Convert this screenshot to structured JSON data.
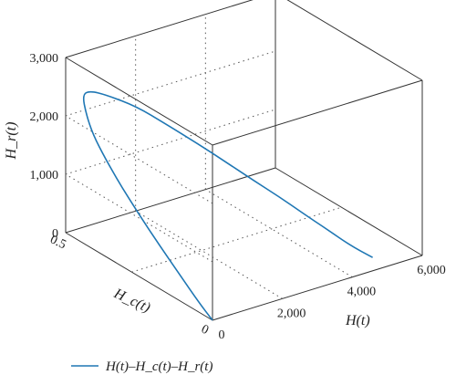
{
  "chart_data": {
    "type": "line3d",
    "title": "",
    "axes": {
      "x": {
        "label": "H(t)",
        "range": [
          0,
          6000
        ],
        "ticks": [
          "0",
          "2,000",
          "4,000",
          "6,000"
        ]
      },
      "y": {
        "label": "H_c(t)",
        "range": [
          0,
          0.5
        ],
        "ticks": [
          "0",
          "0.5"
        ]
      },
      "z": {
        "label": "H_r(t)",
        "range": [
          0,
          3000
        ],
        "ticks": [
          "0",
          "1,000",
          "2,000",
          "3,000"
        ]
      }
    },
    "grid": true,
    "legend": {
      "position": "bottom-left",
      "entries": [
        "H(t)–H_c(t)–H_r(t)"
      ]
    },
    "series": [
      {
        "name": "H(t)–H_c(t)–H_r(t)",
        "color": "#1f77b4",
        "points": [
          {
            "x": 5000,
            "y": 0.05,
            "z": 0
          },
          {
            "x": 4500,
            "y": 0.07,
            "z": 250
          },
          {
            "x": 4000,
            "y": 0.09,
            "z": 560
          },
          {
            "x": 3500,
            "y": 0.11,
            "z": 860
          },
          {
            "x": 3000,
            "y": 0.13,
            "z": 1170
          },
          {
            "x": 2500,
            "y": 0.16,
            "z": 1460
          },
          {
            "x": 2000,
            "y": 0.19,
            "z": 1760
          },
          {
            "x": 1500,
            "y": 0.23,
            "z": 2060
          },
          {
            "x": 1000,
            "y": 0.28,
            "z": 2340
          },
          {
            "x": 600,
            "y": 0.33,
            "z": 2560
          },
          {
            "x": 250,
            "y": 0.39,
            "z": 2640
          },
          {
            "x": 100,
            "y": 0.43,
            "z": 2620
          },
          {
            "x": 60,
            "y": 0.45,
            "z": 2500
          },
          {
            "x": 80,
            "y": 0.44,
            "z": 2200
          },
          {
            "x": 110,
            "y": 0.42,
            "z": 1900
          },
          {
            "x": 130,
            "y": 0.38,
            "z": 1600
          },
          {
            "x": 140,
            "y": 0.33,
            "z": 1300
          },
          {
            "x": 140,
            "y": 0.27,
            "z": 1000
          },
          {
            "x": 120,
            "y": 0.2,
            "z": 700
          },
          {
            "x": 80,
            "y": 0.12,
            "z": 400
          },
          {
            "x": 30,
            "y": 0.05,
            "z": 150
          },
          {
            "x": 0,
            "y": 0,
            "z": 0
          }
        ]
      }
    ]
  }
}
